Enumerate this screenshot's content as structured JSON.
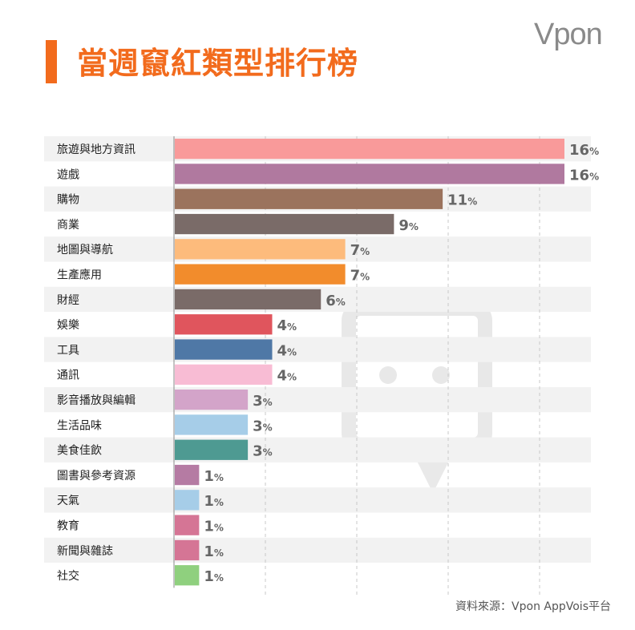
{
  "title": "當週竄紅類型排行榜",
  "logo": "Vpon",
  "source": "資料來源：Vpon AppVois平台",
  "chart_data": {
    "type": "bar",
    "orientation": "horizontal",
    "categories": [
      "旅遊與地方資訊",
      "遊戲",
      "購物",
      "商業",
      "地圖與導航",
      "生產應用",
      "財經",
      "娛樂",
      "工具",
      "通訊",
      "影音播放與編輯",
      "生活品味",
      "美食佳飲",
      "圖書與參考資源",
      "天氣",
      "教育",
      "新聞與雜誌",
      "社交"
    ],
    "values": [
      16,
      16,
      11,
      9,
      7,
      7,
      6,
      4,
      4,
      4,
      3,
      3,
      3,
      1,
      1,
      1,
      1,
      1
    ],
    "unit": "%",
    "colors": [
      "#f99a9a",
      "#b0799f",
      "#9b735d",
      "#7a6b68",
      "#fdbb7c",
      "#f28c2c",
      "#7a6b68",
      "#e0555d",
      "#4f78a6",
      "#f8bcd4",
      "#d3a4c9",
      "#a6cde8",
      "#4e9a92",
      "#b57ba3",
      "#a6cde8",
      "#d57595",
      "#d57595",
      "#8fd07e"
    ],
    "grid": true,
    "xlim": [
      0,
      16
    ]
  }
}
